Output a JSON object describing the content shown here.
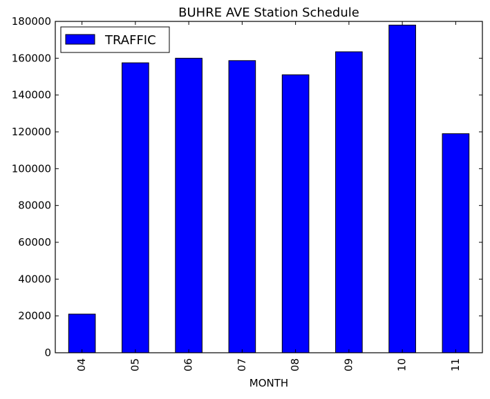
{
  "chart_data": {
    "type": "bar",
    "title": "BUHRE AVE Station Schedule",
    "xlabel": "MONTH",
    "ylabel": "",
    "categories": [
      "04",
      "05",
      "06",
      "07",
      "08",
      "09",
      "10",
      "11"
    ],
    "series": [
      {
        "name": "TRAFFIC",
        "color": "#0000ff",
        "values": [
          21000,
          157500,
          160000,
          158700,
          151000,
          163500,
          178000,
          119000
        ]
      }
    ],
    "ylim": [
      0,
      180000
    ],
    "yticks": [
      0,
      20000,
      40000,
      60000,
      80000,
      100000,
      120000,
      140000,
      160000,
      180000
    ],
    "grid": false,
    "legend_position": "top-left"
  }
}
